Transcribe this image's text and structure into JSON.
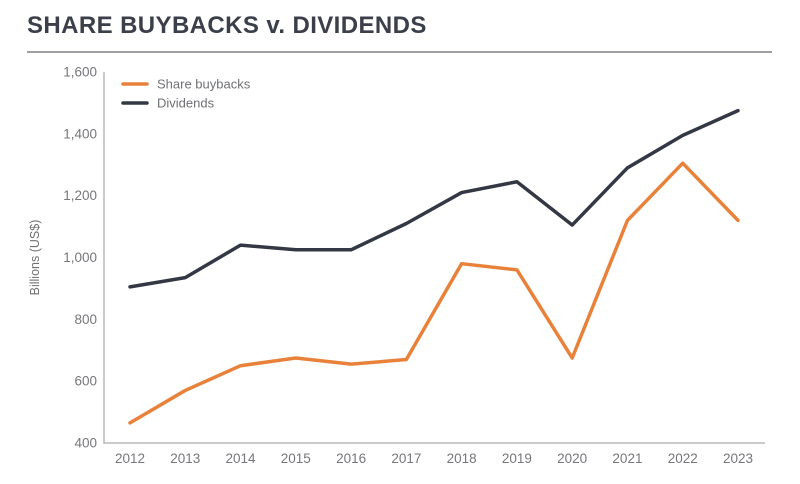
{
  "header": {
    "title": "SHARE BUYBACKS v. DIVIDENDS"
  },
  "chart_data": {
    "type": "line",
    "title": "SHARE BUYBACKS v. DIVIDENDS",
    "xlabel": "",
    "ylabel": "Billions (US$)",
    "categories": [
      "2012",
      "2013",
      "2014",
      "2015",
      "2016",
      "2017",
      "2018",
      "2019",
      "2020",
      "2021",
      "2022",
      "2023"
    ],
    "series": [
      {
        "name": "Share buybacks",
        "color": "#e8823b",
        "values": [
          465,
          570,
          650,
          675,
          655,
          670,
          980,
          960,
          675,
          1120,
          1305,
          1120
        ]
      },
      {
        "name": "Dividends",
        "color": "#343845",
        "values": [
          905,
          935,
          1040,
          1025,
          1025,
          1110,
          1210,
          1245,
          1105,
          1290,
          1395,
          1475
        ]
      }
    ],
    "ylim": [
      400,
      1600
    ],
    "ytick_step": 200,
    "grid": false,
    "legend_position": "top-left",
    "axis_color": "#b8b9bc",
    "tick_label_color": "#76777b"
  }
}
